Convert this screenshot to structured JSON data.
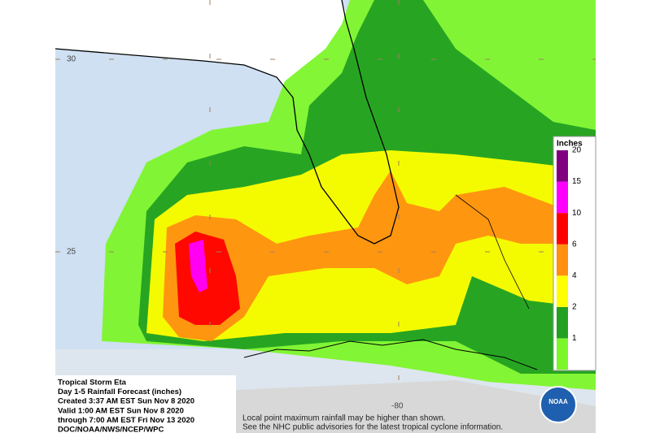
{
  "map": {
    "lat_labels": [
      "30",
      "25"
    ],
    "lon_labels": [
      "-80"
    ]
  },
  "legend": {
    "title": "Inches",
    "levels": [
      {
        "value": 1,
        "color": "#7cf52a"
      },
      {
        "value": 2,
        "color": "#22a022"
      },
      {
        "value": 4,
        "color": "#ffff00"
      },
      {
        "value": 6,
        "color": "#ff9010"
      },
      {
        "value": 10,
        "color": "#ff0000"
      },
      {
        "value": 15,
        "color": "#ff00ff"
      },
      {
        "value": 20,
        "color": "#800080"
      }
    ]
  },
  "info": {
    "lines": [
      "Tropical Storm Eta",
      "Day 1-5 Rainfall Forecast (inches)",
      "Created 3:37 AM EST Sun Nov 8 2020",
      "Valid 1:00 AM EST Sun Nov 8 2020",
      "through 7:00 AM EST Fri Nov 13 2020",
      "DOC/NOAA/NWS/NCEP/WPC"
    ]
  },
  "notes": [
    "Local point maximum rainfall may be higher than shown.",
    "See the NHC public advisories for the latest tropical cyclone information."
  ],
  "logo": "NOAA"
}
